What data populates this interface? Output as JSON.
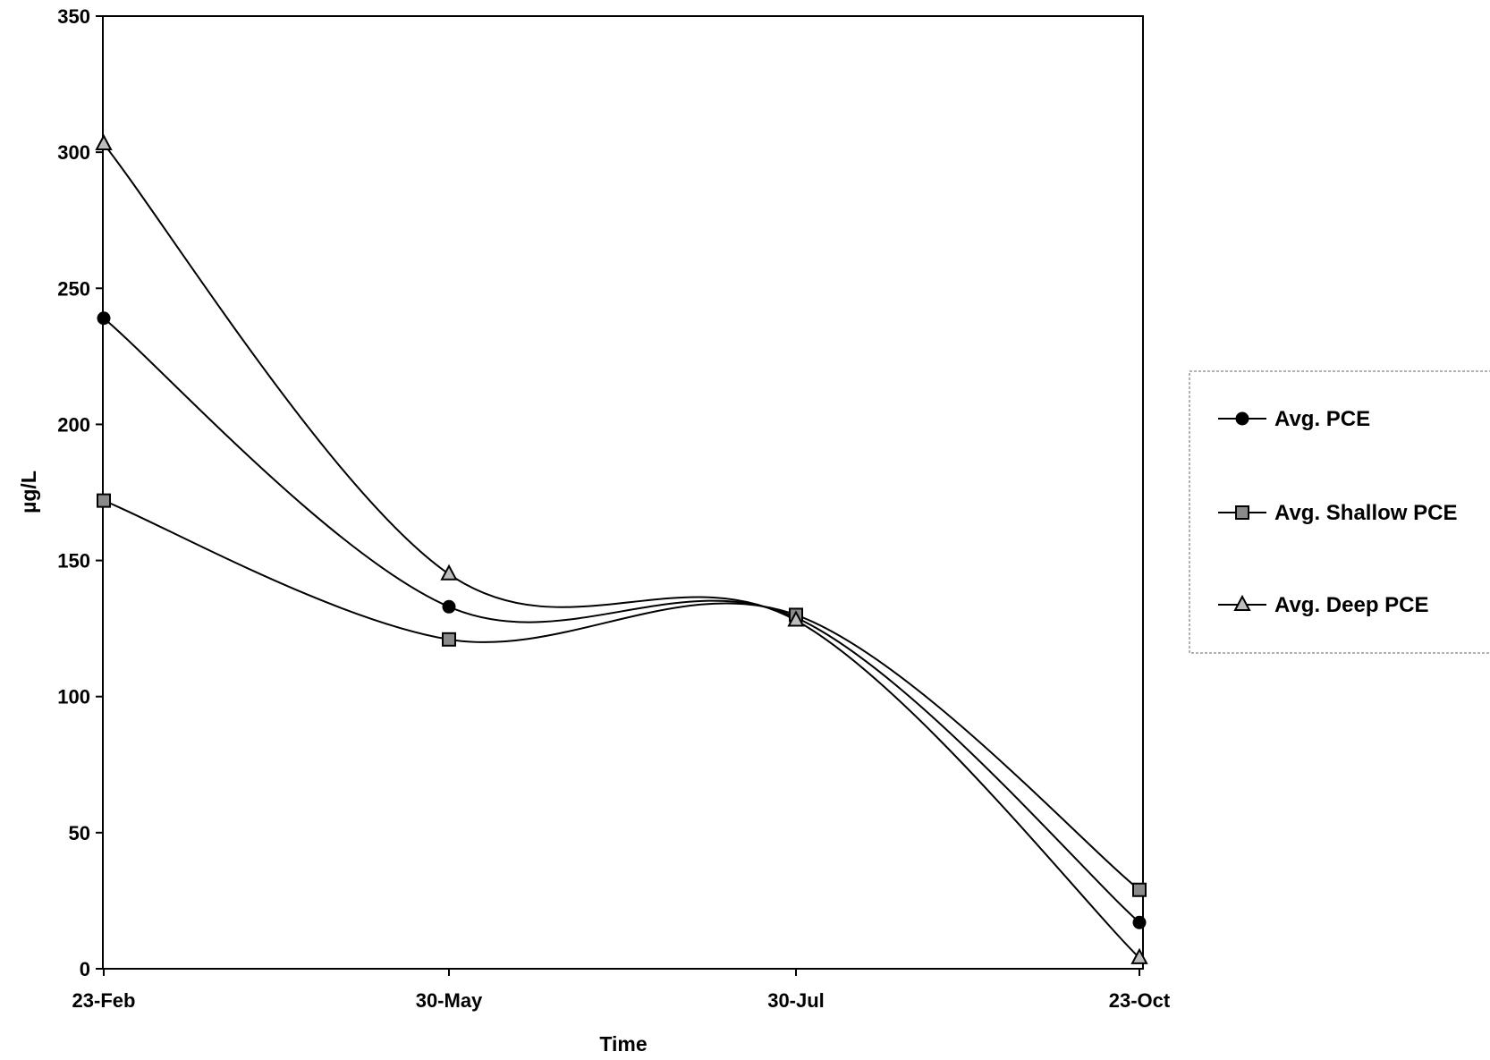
{
  "chart_data": {
    "type": "line",
    "title": "",
    "xlabel": "Time",
    "ylabel": "µg/L",
    "categories": [
      "23-Feb",
      "30-May",
      "30-Jul",
      "23-Oct"
    ],
    "ylim": [
      0,
      350
    ],
    "yticks": [
      "0",
      "50",
      "100",
      "150",
      "200",
      "250",
      "300",
      "350"
    ],
    "smoothed": true,
    "grid": false,
    "legend_position": "right",
    "series": [
      {
        "name": "Avg. PCE",
        "marker": "circle",
        "values": [
          239,
          133,
          129,
          17
        ]
      },
      {
        "name": "Avg. Shallow PCE",
        "marker": "square",
        "values": [
          172,
          121,
          130,
          29
        ]
      },
      {
        "name": "Avg. Deep PCE",
        "marker": "triangle",
        "values": [
          303,
          145,
          128,
          4
        ]
      }
    ]
  }
}
